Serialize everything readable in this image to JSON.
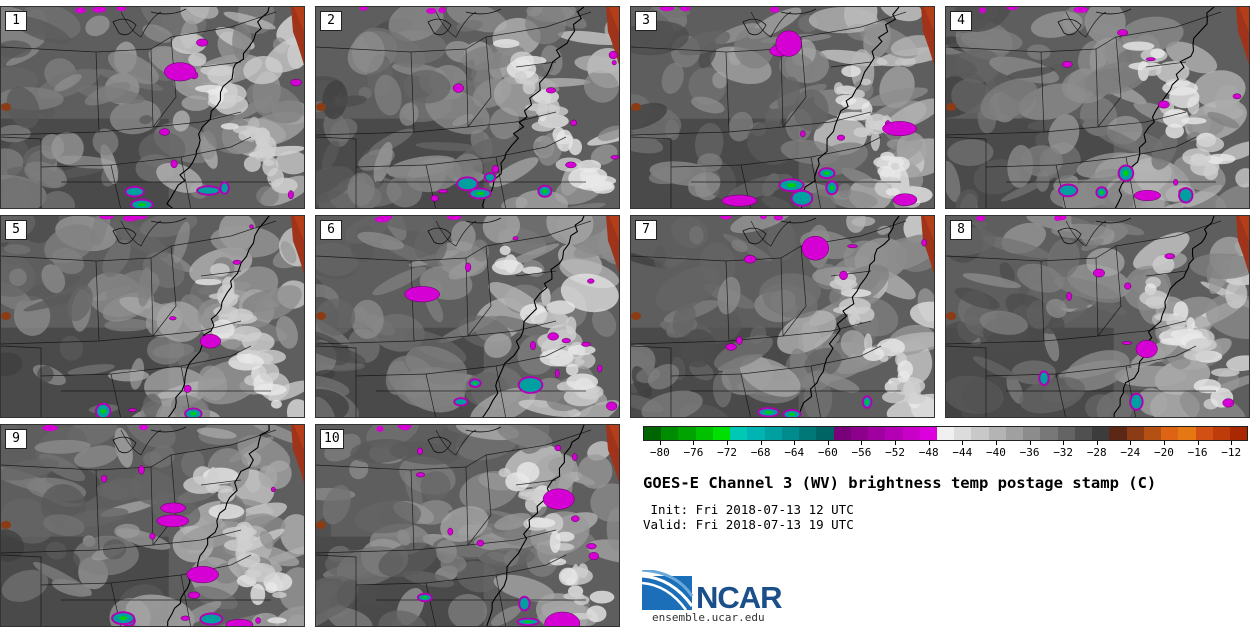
{
  "panels": [
    {
      "label": "1",
      "seed": 11
    },
    {
      "label": "2",
      "seed": 23
    },
    {
      "label": "3",
      "seed": 37
    },
    {
      "label": "4",
      "seed": 41
    },
    {
      "label": "5",
      "seed": 53
    },
    {
      "label": "6",
      "seed": 67
    },
    {
      "label": "7",
      "seed": 71
    },
    {
      "label": "8",
      "seed": 83
    },
    {
      "label": "9",
      "seed": 97
    },
    {
      "label": "10",
      "seed": 101
    }
  ],
  "colorbar": {
    "colors": [
      "#006400",
      "#008c00",
      "#00a300",
      "#00c000",
      "#00e000",
      "#00c8b4",
      "#00b4b4",
      "#00a0a0",
      "#008c8c",
      "#007878",
      "#006464",
      "#780078",
      "#8c008c",
      "#a000a0",
      "#b400b4",
      "#c800c8",
      "#dc00dc",
      "#f0f0f0",
      "#dcdcdc",
      "#c8c8c8",
      "#b4b4b4",
      "#a0a0a0",
      "#8c8c8c",
      "#787878",
      "#646464",
      "#505050",
      "#3c3c3c",
      "#5a2814",
      "#8c3c14",
      "#b45014",
      "#dc6414",
      "#e67814",
      "#d25014",
      "#be3c0a",
      "#aa2800"
    ],
    "tick_labels": [
      "-80",
      "-76",
      "-72",
      "-68",
      "-64",
      "-60",
      "-56",
      "-52",
      "-48",
      "-44",
      "-40",
      "-36",
      "-32",
      "-28",
      "-24",
      "-20",
      "-16",
      "-12"
    ],
    "range": [
      -82,
      -10
    ]
  },
  "title": "GOES-E Channel 3 (WV) brightness temp postage stamp (C)",
  "init": " Init: Fri 2018-07-13 12 UTC",
  "valid": "Valid: Fri 2018-07-13 19 UTC",
  "logo_text": "NCAR",
  "site": "ensemble.ucar.edu"
}
